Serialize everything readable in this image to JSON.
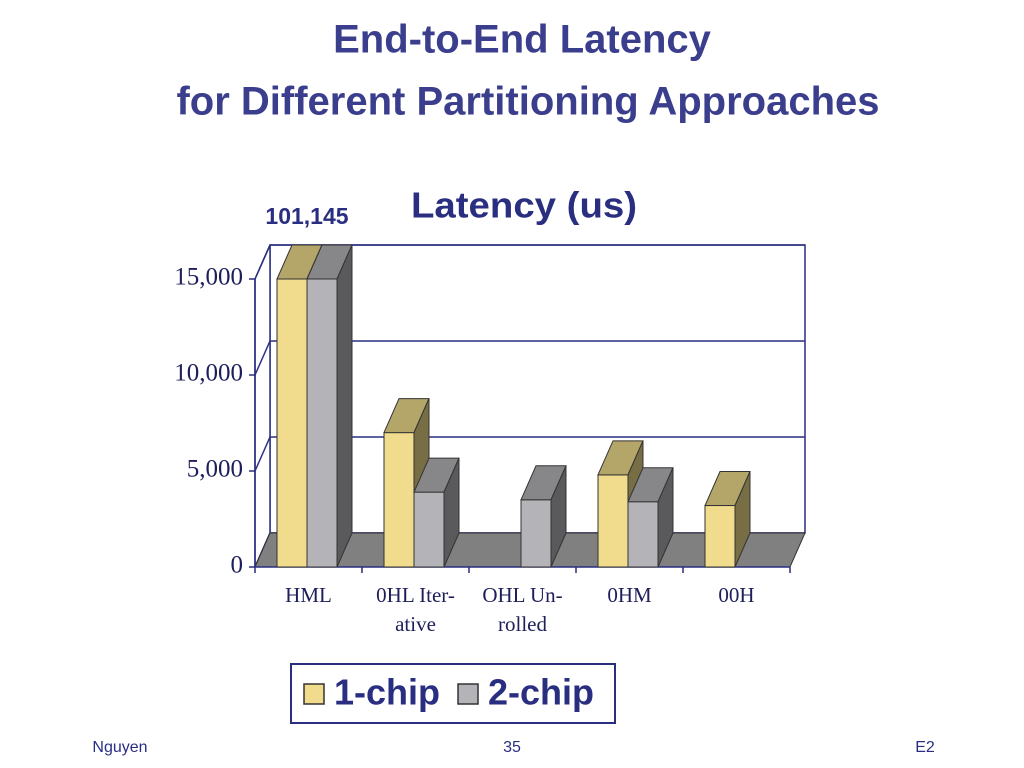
{
  "slide": {
    "title": [
      "End-to-End Latency",
      "for Different Partitioning Approaches"
    ],
    "footer": {
      "left": "Nguyen",
      "center": "35",
      "right": "E2"
    }
  },
  "chart_data": {
    "type": "bar3d",
    "title": "Latency (us)",
    "categories": [
      "HML",
      "0HL Iter-ative",
      "OHL Un-rolled",
      "0HM",
      "00H"
    ],
    "series": [
      {
        "name": "1-chip",
        "color": "#f0dc8c",
        "values": [
          101145,
          7000,
          null,
          4800,
          3200
        ],
        "value_labels": [
          "101,145",
          null,
          null,
          null,
          null
        ]
      },
      {
        "name": "2-chip",
        "color": "#b4b4b8",
        "values": [
          15000,
          3900,
          3500,
          3400,
          null
        ]
      }
    ],
    "ylim": [
      0,
      15000
    ],
    "yticks": [
      0,
      {
        "value": 5000,
        "label": "5,000"
      },
      {
        "value": 10000,
        "label": "10,000"
      },
      {
        "value": 15000,
        "label": "15,000"
      }
    ],
    "grid": true,
    "legend": "bottom"
  }
}
